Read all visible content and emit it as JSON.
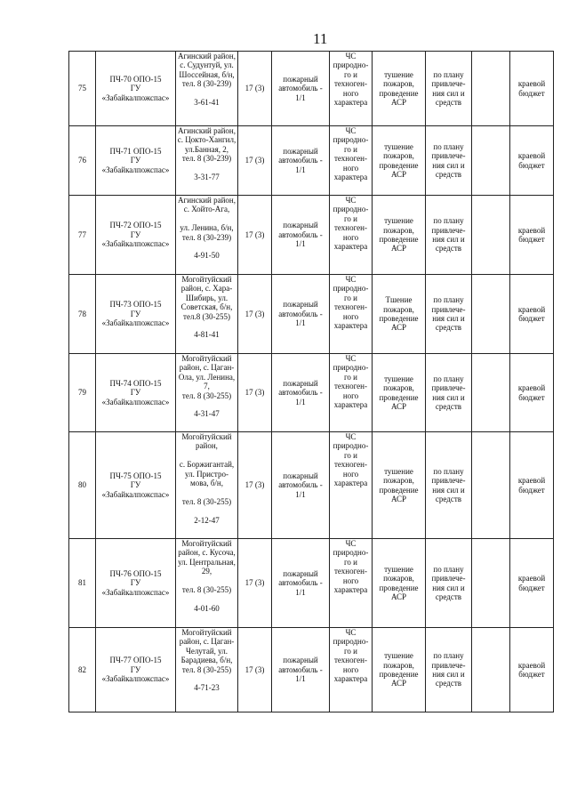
{
  "page_number": "11",
  "rows": [
    {
      "num": "75",
      "name": "ПЧ-70 ОПО-15\nГУ\n«Забайкалпожспас»",
      "address": "Агинский район,\nс. Судунтуй, ул.\nШоссейная, б/н,\nтел. 8 (30-239)\n\n3-61-41",
      "staff": "17 (3)",
      "vehicle": "пожарный\nавтомобиль -\n1/1",
      "emergency": "ЧС\nприродно-\nго и\nтехноген-\nного\nхарактера",
      "tasks": "тушение\nпожаров,\nпроведение\nАСР",
      "plan": "по плану\nпривлече-\nния сил и\nсредств",
      "extra": "",
      "budget": "краевой\nбюджет"
    },
    {
      "num": "76",
      "name": "ПЧ-71 ОПО-15\nГУ\n«Забайкалпожспас»",
      "address": "Агинский район,\nс. Цокто-Хангил,\nул.Банная, 2,\nтел. 8 (30-239)\n\n3-31-77",
      "staff": "17 (3)",
      "vehicle": "пожарный\nавтомобиль -\n1/1",
      "emergency": "ЧС\nприродно-\nго и\nтехноген-\nного\nхарактера",
      "tasks": "тушение\nпожаров,\nпроведение\nАСР",
      "plan": "по плану\nпривлече-\nния сил и\nсредств",
      "extra": "",
      "budget": "краевой\nбюджет"
    },
    {
      "num": "77",
      "name": "ПЧ-72 ОПО-15\nГУ\n«Забайкалпожспас»",
      "address": "Агинский район,\nс. Хойто-Ага,\n\nул. Ленина, б/н,\nтел. 8 (30-239)\n\n4-91-50",
      "staff": "17 (3)",
      "vehicle": "пожарный\nавтомобиль -\n1/1",
      "emergency": "ЧС\nприродно-\nго и\nтехноген-\nного\nхарактера",
      "tasks": "тушение\nпожаров,\nпроведение\nАСР",
      "plan": "по плану\nпривлече-\nния сил и\nсредств",
      "extra": "",
      "budget": "краевой\nбюджет"
    },
    {
      "num": "78",
      "name": "ПЧ-73 ОПО-15\nГУ\n«Забайкалпожспас»",
      "address": "Могойтуйский\nрайон, с. Хара-\nШибирь, ул.\nСоветская, б/н,\nтел.8 (30-255)\n\n4-81-41",
      "staff": "17 (3)",
      "vehicle": "пожарный\nавтомобиль -\n1/1",
      "emergency": "ЧС\nприродно-\nго и\nтехноген-\nного\nхарактера",
      "tasks": "Тшение\nпожаров,\nпроведение\nАСР",
      "plan": "по плану\nпривлече-\nния сил и\nсредств",
      "extra": "",
      "budget": "краевой\nбюджет"
    },
    {
      "num": "79",
      "name": "ПЧ-74 ОПО-15\nГУ\n«Забайкалпожспас»",
      "address": "Могойтуйский\nрайон, с. Цаган-\nОла, ул. Ленина,\n7,\nтел. 8 (30-255)\n\n4-31-47",
      "staff": "17 (3)",
      "vehicle": "пожарный\nавтомобиль -\n1/1",
      "emergency": "ЧС\nприродно-\nго и\nтехноген-\nного\nхарактера",
      "tasks": "тушение\nпожаров,\nпроведение\nАСР",
      "plan": "по плану\nпривлече-\nния сил и\nсредств",
      "extra": "",
      "budget": "краевой\nбюджет"
    },
    {
      "num": "80",
      "name": "ПЧ-75 ОПО-15\nГУ\n«Забайкалпожспас»",
      "address": "Могойтуйский\nрайон,\n\nс. Боржигантай,\nул. Пристро-\nмова, б/н,\n\nтел. 8 (30-255)\n\n2-12-47",
      "staff": "17 (3)",
      "vehicle": "пожарный\nавтомобиль -\n1/1",
      "emergency": "ЧС\nприродно-\nго и\nтехноген-\nного\nхарактера",
      "tasks": "тушение\nпожаров,\nпроведение\nАСР",
      "plan": "по плану\nпривлече-\nния сил и\nсредств",
      "extra": "",
      "budget": "краевой\nбюджет"
    },
    {
      "num": "81",
      "name": "ПЧ-76 ОПО-15\nГУ\n«Забайкалпожспас»",
      "address": "Могойтуйский\nрайон, с. Кусоча,\nул. Центральная,\n29,\n\nтел. 8 (30-255)\n\n4-01-60",
      "staff": "17 (3)",
      "vehicle": "пожарный\nавтомобиль -\n1/1",
      "emergency": "ЧС\nприродно-\nго и\nтехноген-\nного\nхарактера",
      "tasks": "тушение\nпожаров,\nпроведение\nАСР",
      "plan": "по плану\nпривлече-\nния сил и\nсредств",
      "extra": "",
      "budget": "краевой\nбюджет"
    },
    {
      "num": "82",
      "name": "ПЧ-77 ОПО-15\nГУ\n«Забайкалпожспас»",
      "address": "Могойтуйский\nрайон, с. Цаган-\nЧелутай, ул.\nБарадиева, б/н,\nтел. 8 (30-255)\n\n4-71-23",
      "staff": "17 (3)",
      "vehicle": "пожарный\nавтомобиль -\n1/1",
      "emergency": "ЧС\nприродно-\nго и\nтехноген-\nного\nхарактера",
      "tasks": "тушение\nпожаров,\nпроведение\nАСР",
      "plan": "по плану\nпривлече-\nния сил и\nсредств",
      "extra": "",
      "budget": "краевой\nбюджет"
    }
  ]
}
